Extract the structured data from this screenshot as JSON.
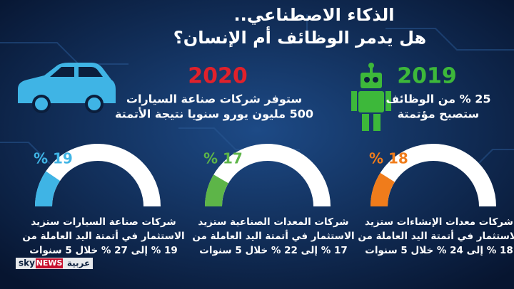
{
  "title": [
    "الذكاء الاصطناعي..",
    "هل يدمر الوظائف أم الإنسان؟"
  ],
  "facts": [
    {
      "year": "2019",
      "color": "#3db83a",
      "lines": [
        "25 % من الوظائف",
        "ستصبح مؤتمتة"
      ]
    },
    {
      "year": "2020",
      "color": "#e0212b",
      "lines": [
        "ستوفر شركات صناعة السيارات",
        "500 مليون يورو سنويا نتيجة الأتمتة"
      ]
    }
  ],
  "gauges": [
    {
      "value": 19,
      "label": "% 19",
      "color": "#3fb4e5",
      "lines": [
        "شركات صناعة السيارات ستزيد",
        "الاستثمار في أتمتة اليد العاملة من",
        "19 % إلى 27 % خلال 5 سنوات"
      ]
    },
    {
      "value": 17,
      "label": "% 17",
      "color": "#5db548",
      "lines": [
        "شركات المعدات الصناعية ستزيد",
        "الاستثمار في أتمتة اليد العاملة من",
        "17 % إلى 22 % خلال 5 سنوات"
      ]
    },
    {
      "value": 18,
      "label": "% 18",
      "color": "#f07c1b",
      "lines": [
        "شركات معدات الإنشاءات ستزيد",
        "الاستثمار في أتمتة اليد العاملة من",
        "18 % إلى 24 % خلال 5 سنوات"
      ]
    }
  ],
  "logo": {
    "brand": "sky",
    "news": "NEWS",
    "arabic": "عربية"
  }
}
